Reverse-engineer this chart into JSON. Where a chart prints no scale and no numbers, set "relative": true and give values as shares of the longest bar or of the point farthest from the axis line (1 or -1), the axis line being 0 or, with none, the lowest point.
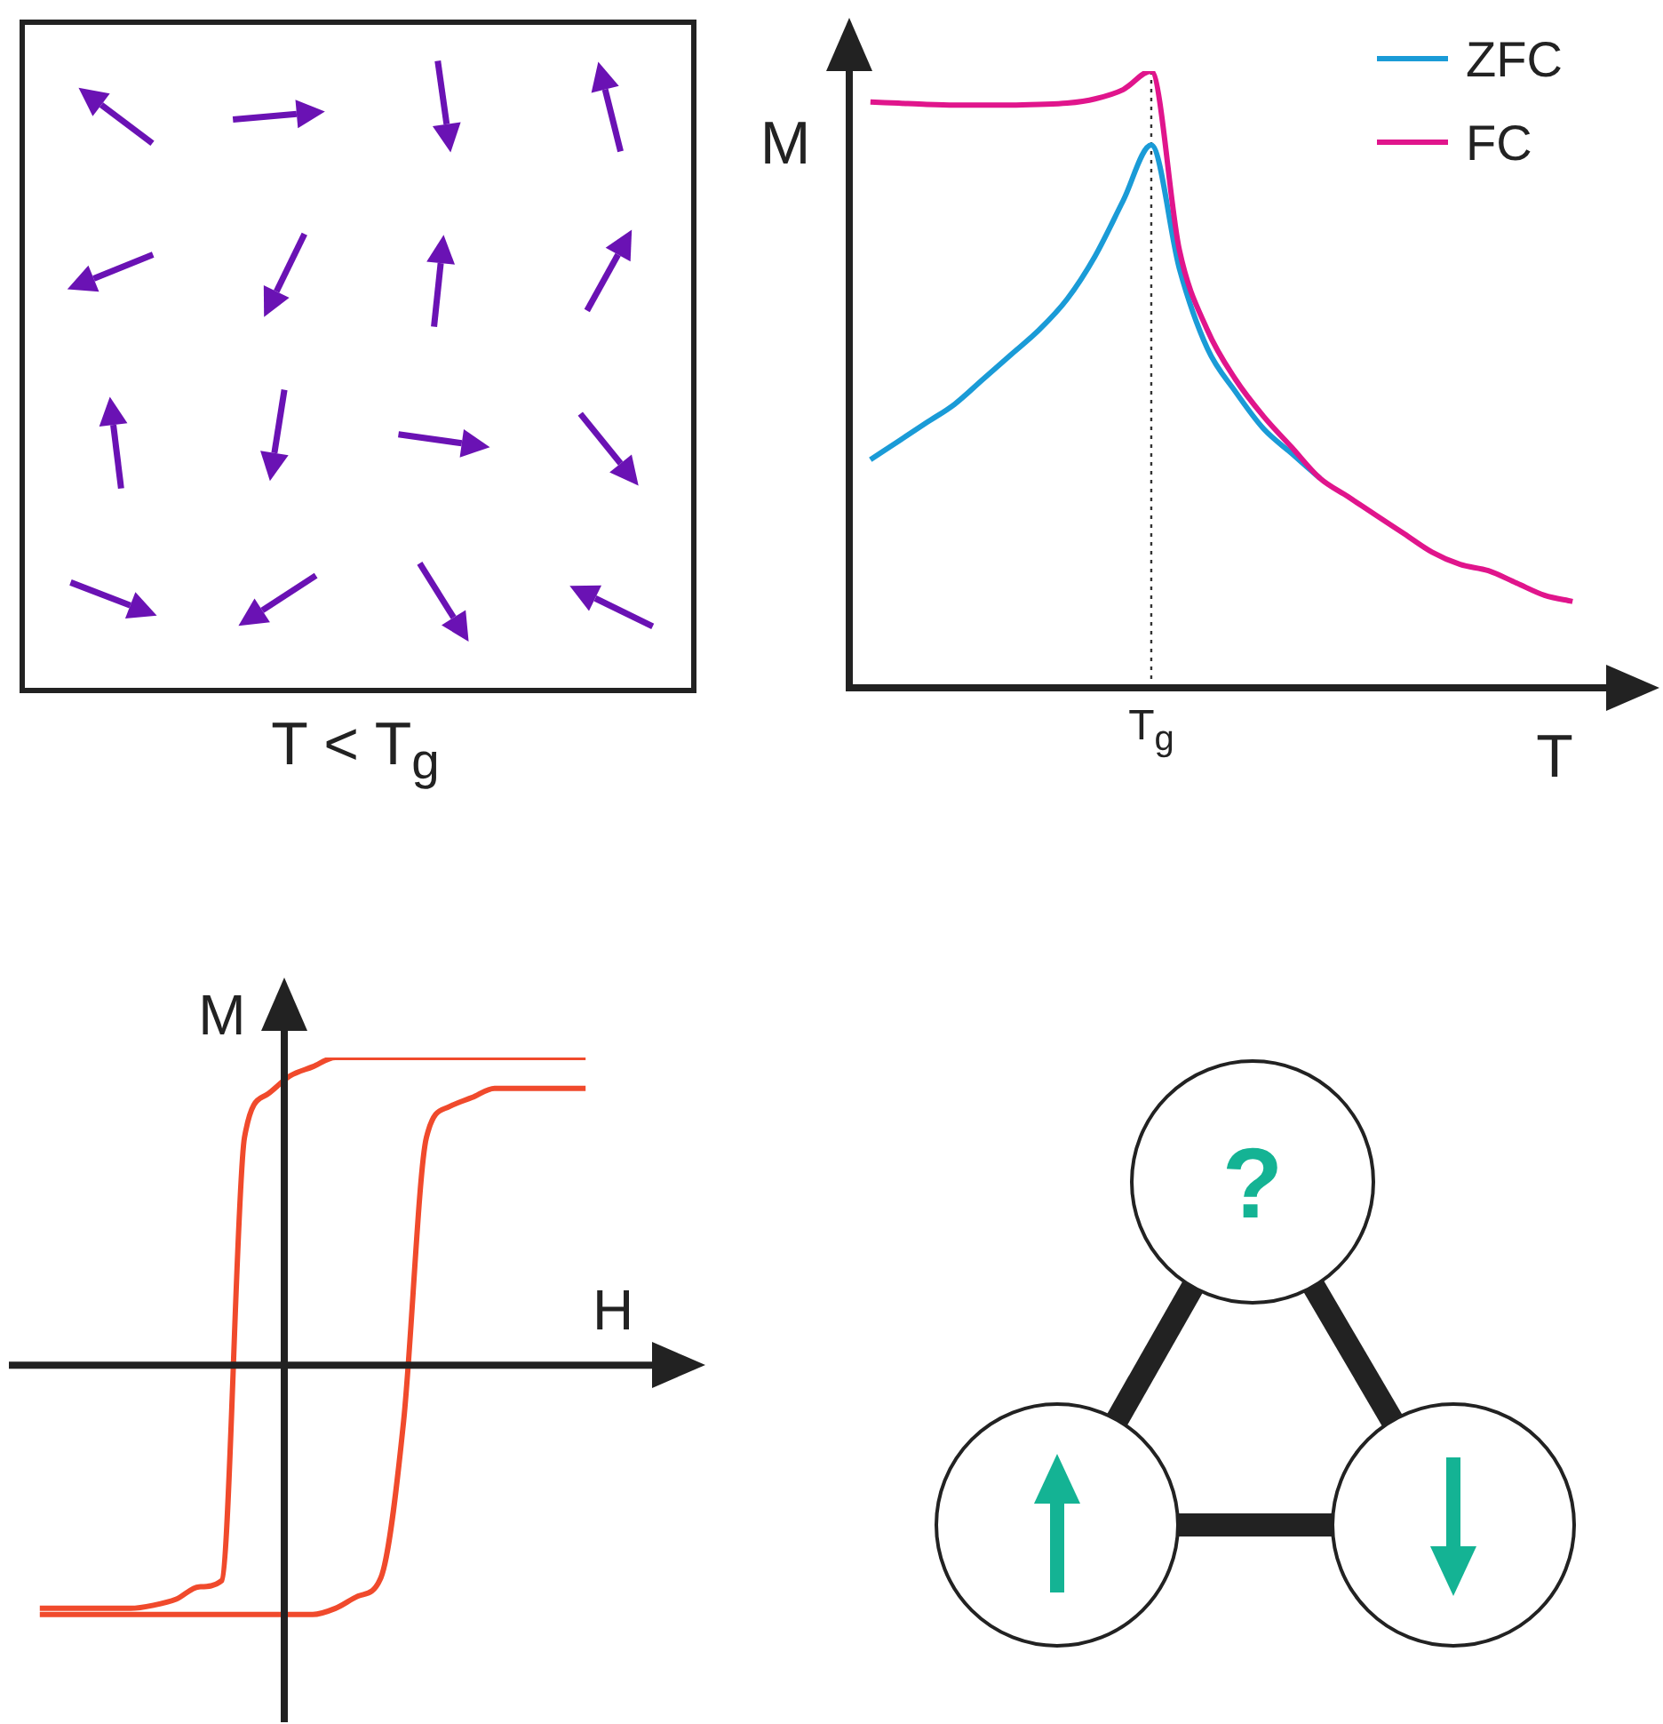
{
  "chart_data": [
    {
      "type": "line",
      "relative": true,
      "xlabel": "T",
      "ylabel": "M",
      "legend": "top right",
      "categories": [
        null,
        null,
        null,
        null,
        null,
        null,
        null,
        null,
        null,
        null,
        null,
        null,
        null,
        null,
        null,
        null,
        null,
        null,
        null,
        null,
        null,
        null,
        null,
        null,
        null,
        null
      ],
      "series": [
        {
          "name": "ZFC",
          "color": "#1a9bd7",
          "values": [
            0.37,
            0.4,
            0.43,
            0.46,
            0.5,
            0.54,
            0.58,
            0.63,
            0.7,
            0.79,
            0.88,
            0.68,
            0.55,
            0.48,
            0.42,
            0.38,
            0.34,
            null,
            null,
            null,
            null,
            null,
            null,
            null,
            null,
            null
          ]
        },
        {
          "name": "FC",
          "color": "#e0158c",
          "values": [
            0.95,
            0.948,
            0.946,
            0.945,
            0.945,
            0.945,
            0.946,
            0.948,
            0.955,
            0.97,
            1.0,
            0.71,
            0.58,
            0.5,
            0.44,
            0.39,
            0.34,
            0.31,
            0.28,
            0.25,
            0.22,
            0.2,
            0.19,
            0.17,
            0.15,
            0.14
          ]
        }
      ],
      "annotations": [
        "T$_{g}$"
      ]
    },
    {
      "type": "line",
      "relative": true,
      "xlabel": "H",
      "ylabel": "M",
      "categories": [
        null,
        null,
        null,
        null,
        null,
        null,
        null,
        null,
        null,
        null,
        null,
        null,
        null,
        null,
        null,
        null,
        null,
        null,
        null,
        null,
        null,
        null,
        null,
        null,
        null
      ],
      "series": [
        {
          "color": "#f04a2c",
          "values": [
            -0.79,
            -0.79,
            -0.79,
            -0.79,
            -0.79,
            -0.78,
            -0.76,
            -0.72,
            -0.7,
            0.74,
            0.88,
            0.94,
            0.97,
            1.0,
            1.0,
            1.0,
            1.0,
            1.0,
            1.0,
            1.0,
            1.0,
            1.0,
            1.0,
            1.0,
            1.0
          ]
        },
        {
          "color": "#f04a2c",
          "values": [
            -0.81,
            -0.81,
            -0.81,
            -0.81,
            -0.81,
            -0.81,
            -0.81,
            -0.81,
            -0.81,
            -0.81,
            -0.81,
            -0.81,
            -0.81,
            -0.79,
            -0.75,
            -0.69,
            -0.18,
            0.74,
            0.84,
            0.87,
            0.9,
            0.9,
            0.9,
            0.9,
            0.9
          ]
        }
      ]
    },
    {
      "type": "other",
      "annotations": [
        "T < T$_{g}$",
        "?"
      ]
    }
  ]
}
